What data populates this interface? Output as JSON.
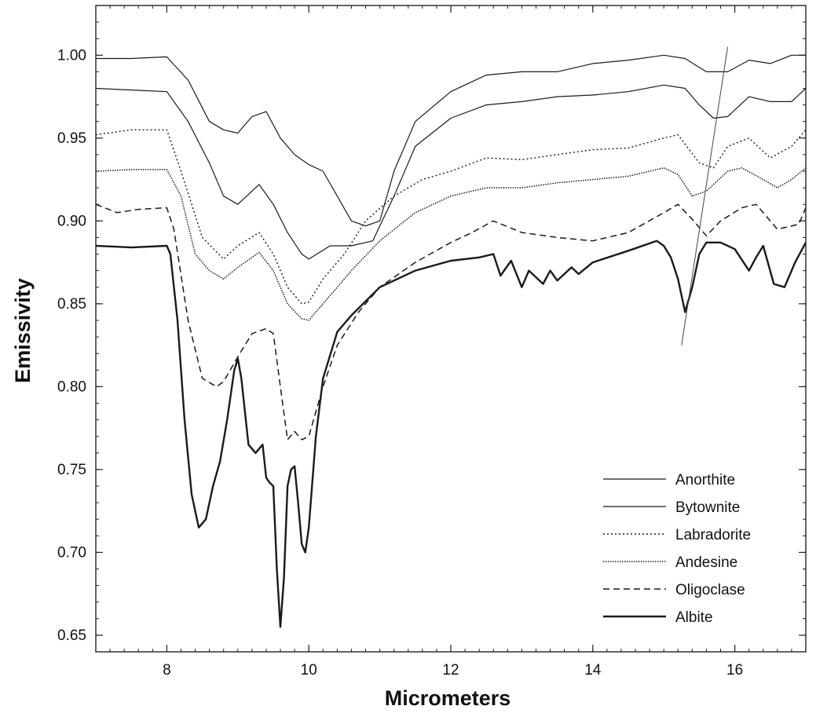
{
  "chart_data": {
    "type": "line",
    "title": "",
    "xlabel": "Micrometers",
    "ylabel": "Emissivity",
    "xlim": [
      7.0,
      17.0
    ],
    "ylim": [
      0.64,
      1.03
    ],
    "x_ticks": [
      8,
      10,
      12,
      14,
      16
    ],
    "x_tick_labels": [
      "8",
      "10",
      "12",
      "14",
      "16"
    ],
    "y_ticks": [
      0.65,
      0.7,
      0.75,
      0.8,
      0.85,
      0.9,
      0.95,
      1.0
    ],
    "y_tick_labels": [
      "0.65",
      "0.70",
      "0.75",
      "0.80",
      "0.85",
      "0.90",
      "0.95",
      "1.00"
    ],
    "grid": false,
    "legend_position": "bottom-right",
    "series": [
      {
        "name": "Anorthite",
        "style": "solid-thin",
        "x": [
          7.0,
          7.5,
          8.0,
          8.3,
          8.6,
          8.8,
          9.0,
          9.2,
          9.4,
          9.6,
          9.8,
          10.0,
          10.2,
          10.4,
          10.6,
          10.8,
          11.0,
          11.2,
          11.5,
          12.0,
          12.5,
          13.0,
          13.5,
          14.0,
          14.5,
          15.0,
          15.3,
          15.6,
          15.9,
          16.2,
          16.5,
          16.8,
          17.0
        ],
        "y": [
          0.998,
          0.998,
          0.999,
          0.985,
          0.96,
          0.955,
          0.953,
          0.963,
          0.966,
          0.95,
          0.94,
          0.934,
          0.93,
          0.915,
          0.9,
          0.897,
          0.9,
          0.93,
          0.96,
          0.978,
          0.988,
          0.99,
          0.99,
          0.995,
          0.997,
          1.0,
          0.998,
          0.99,
          0.99,
          0.997,
          0.995,
          1.0,
          1.0
        ]
      },
      {
        "name": "Bytownite",
        "style": "solid-thin",
        "x": [
          7.0,
          7.5,
          8.0,
          8.3,
          8.6,
          8.8,
          9.0,
          9.3,
          9.5,
          9.7,
          9.9,
          10.0,
          10.3,
          10.6,
          10.9,
          11.2,
          11.5,
          12.0,
          12.5,
          13.0,
          13.5,
          14.0,
          14.5,
          15.0,
          15.3,
          15.5,
          15.7,
          15.9,
          16.2,
          16.5,
          16.8,
          17.0
        ],
        "y": [
          0.98,
          0.979,
          0.978,
          0.96,
          0.935,
          0.915,
          0.91,
          0.922,
          0.91,
          0.893,
          0.88,
          0.877,
          0.885,
          0.885,
          0.888,
          0.915,
          0.945,
          0.962,
          0.97,
          0.972,
          0.975,
          0.976,
          0.978,
          0.982,
          0.98,
          0.97,
          0.962,
          0.963,
          0.975,
          0.972,
          0.972,
          0.98
        ]
      },
      {
        "name": "Labradorite",
        "style": "dotted",
        "x": [
          7.0,
          7.5,
          8.0,
          8.2,
          8.5,
          8.8,
          9.0,
          9.3,
          9.5,
          9.7,
          9.9,
          10.0,
          10.2,
          10.5,
          10.8,
          11.2,
          11.6,
          12.0,
          12.5,
          13.0,
          13.5,
          14.0,
          14.5,
          15.0,
          15.2,
          15.5,
          15.7,
          15.9,
          16.2,
          16.5,
          16.8,
          17.0
        ],
        "y": [
          0.952,
          0.955,
          0.955,
          0.93,
          0.89,
          0.877,
          0.885,
          0.893,
          0.88,
          0.86,
          0.85,
          0.851,
          0.865,
          0.88,
          0.9,
          0.915,
          0.925,
          0.93,
          0.938,
          0.937,
          0.94,
          0.943,
          0.944,
          0.95,
          0.952,
          0.935,
          0.932,
          0.945,
          0.95,
          0.938,
          0.945,
          0.955
        ]
      },
      {
        "name": "Andesine",
        "style": "dense-dotted",
        "x": [
          7.0,
          7.5,
          8.0,
          8.2,
          8.4,
          8.6,
          8.8,
          9.0,
          9.3,
          9.5,
          9.7,
          9.9,
          10.0,
          10.3,
          10.6,
          11.0,
          11.5,
          12.0,
          12.5,
          13.0,
          13.5,
          14.0,
          14.5,
          15.0,
          15.2,
          15.4,
          15.6,
          15.9,
          16.1,
          16.4,
          16.6,
          16.8,
          17.0
        ],
        "y": [
          0.93,
          0.931,
          0.931,
          0.915,
          0.88,
          0.87,
          0.865,
          0.872,
          0.881,
          0.87,
          0.85,
          0.841,
          0.84,
          0.855,
          0.87,
          0.888,
          0.905,
          0.915,
          0.92,
          0.92,
          0.923,
          0.925,
          0.927,
          0.932,
          0.928,
          0.915,
          0.918,
          0.93,
          0.932,
          0.925,
          0.92,
          0.925,
          0.932
        ]
      },
      {
        "name": "Oligoclase",
        "style": "dashed",
        "x": [
          7.0,
          7.3,
          7.6,
          8.0,
          8.1,
          8.3,
          8.5,
          8.7,
          8.8,
          9.0,
          9.2,
          9.4,
          9.5,
          9.6,
          9.7,
          9.8,
          9.9,
          10.0,
          10.2,
          10.4,
          10.7,
          11.0,
          11.5,
          12.0,
          12.3,
          12.6,
          13.0,
          13.5,
          14.0,
          14.5,
          15.0,
          15.2,
          15.4,
          15.6,
          15.8,
          16.1,
          16.3,
          16.6,
          16.9,
          17.0
        ],
        "y": [
          0.91,
          0.905,
          0.907,
          0.908,
          0.895,
          0.84,
          0.805,
          0.8,
          0.803,
          0.818,
          0.832,
          0.835,
          0.832,
          0.8,
          0.768,
          0.773,
          0.768,
          0.77,
          0.8,
          0.825,
          0.845,
          0.86,
          0.875,
          0.887,
          0.893,
          0.9,
          0.893,
          0.89,
          0.888,
          0.893,
          0.905,
          0.91,
          0.901,
          0.891,
          0.9,
          0.908,
          0.91,
          0.895,
          0.898,
          0.908
        ]
      },
      {
        "name": "Albite",
        "style": "solid-thick",
        "x": [
          7.0,
          7.5,
          8.0,
          8.05,
          8.15,
          8.25,
          8.35,
          8.45,
          8.55,
          8.65,
          8.75,
          8.85,
          8.95,
          9.0,
          9.05,
          9.15,
          9.25,
          9.35,
          9.4,
          9.45,
          9.5,
          9.55,
          9.6,
          9.65,
          9.7,
          9.75,
          9.8,
          9.85,
          9.9,
          9.95,
          10.0,
          10.1,
          10.2,
          10.4,
          10.6,
          11.0,
          11.5,
          12.0,
          12.4,
          12.6,
          12.7,
          12.85,
          13.0,
          13.1,
          13.3,
          13.4,
          13.5,
          13.7,
          13.8,
          14.0,
          14.5,
          14.9,
          15.0,
          15.1,
          15.2,
          15.3,
          15.4,
          15.5,
          15.6,
          15.8,
          16.0,
          16.2,
          16.3,
          16.4,
          16.55,
          16.7,
          16.85,
          17.0
        ],
        "y": [
          0.885,
          0.884,
          0.885,
          0.88,
          0.84,
          0.78,
          0.735,
          0.715,
          0.72,
          0.74,
          0.755,
          0.78,
          0.81,
          0.817,
          0.805,
          0.765,
          0.76,
          0.765,
          0.745,
          0.742,
          0.74,
          0.69,
          0.655,
          0.685,
          0.74,
          0.75,
          0.752,
          0.73,
          0.705,
          0.7,
          0.715,
          0.77,
          0.805,
          0.833,
          0.843,
          0.86,
          0.87,
          0.876,
          0.878,
          0.88,
          0.867,
          0.876,
          0.86,
          0.87,
          0.862,
          0.87,
          0.864,
          0.872,
          0.868,
          0.875,
          0.882,
          0.888,
          0.885,
          0.878,
          0.865,
          0.845,
          0.86,
          0.88,
          0.887,
          0.887,
          0.883,
          0.87,
          0.878,
          0.885,
          0.862,
          0.86,
          0.875,
          0.887
        ]
      }
    ],
    "annotations": [
      {
        "type": "line",
        "x": [
          15.25,
          15.9
        ],
        "y": [
          0.825,
          1.005
        ]
      }
    ]
  }
}
